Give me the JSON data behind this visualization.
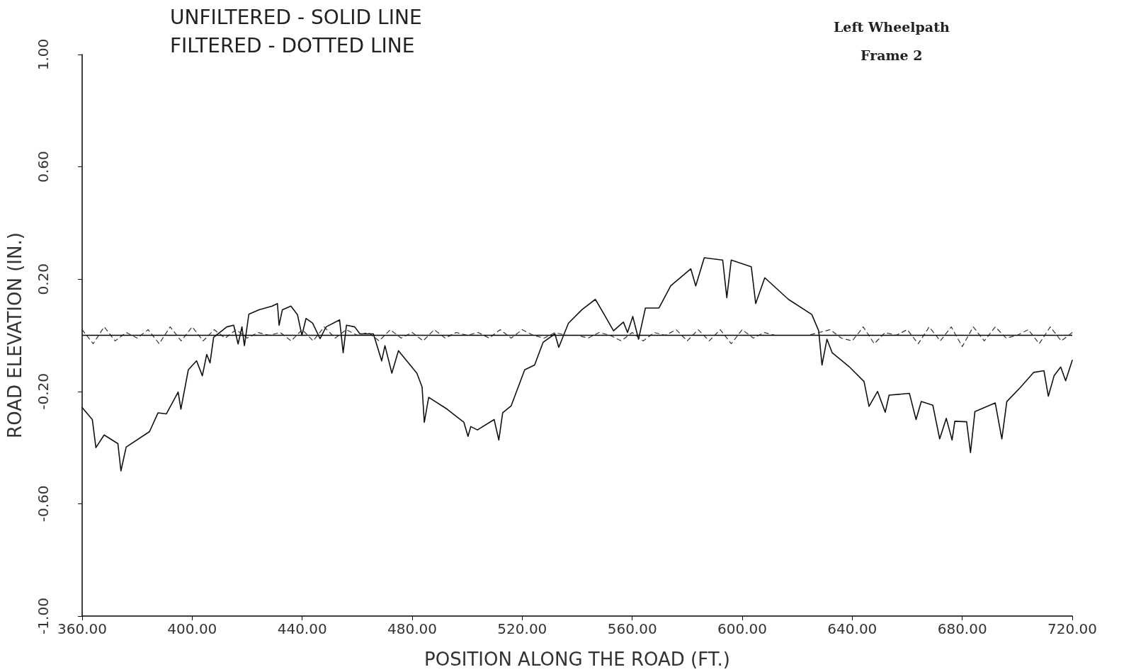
{
  "chart_data": {
    "type": "line",
    "xlabel": "POSITION ALONG THE ROAD (FT.)",
    "ylabel": "ROAD ELEVATION (IN.)",
    "annotations": [
      "UNFILTERED - SOLID LINE",
      "FILTERED - DOTTED LINE",
      "Left Wheelpath",
      "Frame 2"
    ],
    "xlim": [
      360,
      720
    ],
    "ylim": [
      -1,
      1
    ],
    "xticks": [
      {
        "value": 360,
        "label": "360.00"
      },
      {
        "value": 400,
        "label": "400.00"
      },
      {
        "value": 440,
        "label": "440.00"
      },
      {
        "value": 480,
        "label": "480.00"
      },
      {
        "value": 520,
        "label": "520.00"
      },
      {
        "value": 560,
        "label": "560.00"
      },
      {
        "value": 600,
        "label": "600.00"
      },
      {
        "value": 640,
        "label": "640.00"
      },
      {
        "value": 680,
        "label": "680.00"
      },
      {
        "value": 720,
        "label": "720.00"
      }
    ],
    "yticks": [
      {
        "value": -1,
        "label": "-1.00"
      },
      {
        "value": -0.6,
        "label": "-0.60"
      },
      {
        "value": -0.2,
        "label": "-0.20"
      },
      {
        "value": 0.2,
        "label": "0.20"
      },
      {
        "value": 0.6,
        "label": "0.60"
      },
      {
        "value": 1,
        "label": "1.00"
      }
    ],
    "grid": false,
    "marker": "none",
    "ref_lines": [
      {
        "axis": "y",
        "value": 0,
        "color": "#000000",
        "line_style": "solid"
      }
    ],
    "series": [
      {
        "color": "#111111",
        "line_style": "solid",
        "x": [
          360,
          363.7,
          365,
          368,
          373,
          374.1,
          376,
          384.5,
          387.6,
          390.6,
          394.9,
          395.9,
          398.6,
          401.6,
          403.7,
          405.3,
          406.5,
          407.8,
          412.6,
          415.1,
          416.7,
          418.1,
          419,
          420.6,
          424.3,
          429.1,
          431,
          431.6,
          432.8,
          435.9,
          438.3,
          439.9,
          441.4,
          443.8,
          446.5,
          448.7,
          453.6,
          454.9,
          456.1,
          459.1,
          461,
          465.9,
          468.9,
          470.1,
          472.6,
          475,
          481.7,
          483.6,
          484.4,
          486,
          492.7,
          498.8,
          500.3,
          501.3,
          503.7,
          509.8,
          511.5,
          512.9,
          516,
          520.9,
          524.5,
          527.6,
          531.9,
          533.3,
          536.8,
          541.7,
          546.6,
          549.6,
          553.2,
          556.8,
          558.3,
          560.2,
          562.3,
          564.8,
          569.7,
          574,
          581.3,
          583.1,
          586.2,
          592.9,
          594.4,
          596,
          603.3,
          604.9,
          608.2,
          616.8,
          625.3,
          627.8,
          629,
          630.8,
          632.7,
          638.8,
          644.3,
          646.1,
          649.2,
          652,
          653.4,
          660.8,
          663.2,
          665.1,
          669.3,
          671.8,
          674.2,
          676.3,
          677.3,
          681.6,
          683,
          684.6,
          692,
          694.4,
          696.2,
          701.1,
          706,
          709.7,
          711.3,
          713.4,
          715.8,
          717.6,
          720
        ],
        "values": [
          -0.257,
          -0.3,
          -0.4,
          -0.355,
          -0.386,
          -0.483,
          -0.398,
          -0.343,
          -0.276,
          -0.28,
          -0.202,
          -0.263,
          -0.123,
          -0.091,
          -0.144,
          -0.068,
          -0.098,
          -0.007,
          0.03,
          0.036,
          -0.031,
          0.03,
          -0.037,
          0.075,
          0.091,
          0.104,
          0.113,
          0.036,
          0.091,
          0.104,
          0.073,
          0,
          0.06,
          0.043,
          -0.012,
          0.03,
          0.055,
          -0.062,
          0.036,
          0.03,
          0.005,
          0.005,
          -0.091,
          -0.037,
          -0.135,
          -0.055,
          -0.135,
          -0.184,
          -0.31,
          -0.221,
          -0.263,
          -0.31,
          -0.36,
          -0.325,
          -0.337,
          -0.3,
          -0.373,
          -0.276,
          -0.251,
          -0.123,
          -0.106,
          -0.025,
          0.005,
          -0.043,
          0.043,
          0.091,
          0.128,
          0.078,
          0.016,
          0.047,
          0.01,
          0.067,
          -0.014,
          0.097,
          0.097,
          0.176,
          0.237,
          0.176,
          0.276,
          0.268,
          0.134,
          0.268,
          0.244,
          0.113,
          0.205,
          0.128,
          0.074,
          0.016,
          -0.106,
          -0.014,
          -0.062,
          -0.111,
          -0.165,
          -0.253,
          -0.2,
          -0.274,
          -0.213,
          -0.207,
          -0.3,
          -0.236,
          -0.249,
          -0.369,
          -0.296,
          -0.373,
          -0.306,
          -0.308,
          -0.418,
          -0.272,
          -0.241,
          -0.369,
          -0.236,
          -0.186,
          -0.132,
          -0.126,
          -0.217,
          -0.144,
          -0.113,
          -0.162,
          -0.089
        ]
      },
      {
        "color": "#333333",
        "line_style": "dashed",
        "x": [
          360,
          364,
          368,
          372,
          376,
          380,
          384,
          388,
          392,
          396,
          400,
          404,
          408,
          412,
          416,
          420,
          424,
          428,
          432,
          436,
          440,
          444,
          448,
          452,
          456,
          460,
          464,
          468,
          472,
          476,
          480,
          484,
          488,
          492,
          496,
          500,
          504,
          508,
          512,
          516,
          520,
          524,
          528,
          532,
          536,
          540,
          544,
          548,
          552,
          556,
          560,
          564,
          568,
          572,
          576,
          580,
          584,
          588,
          592,
          596,
          600,
          604,
          608,
          612,
          616,
          620,
          624,
          628,
          632,
          636,
          640,
          644,
          648,
          652,
          656,
          660,
          664,
          668,
          672,
          676,
          680,
          684,
          688,
          692,
          696,
          700,
          704,
          708,
          712,
          716,
          720
        ],
        "values": [
          0.02,
          -0.03,
          0.03,
          -0.02,
          0.01,
          -0.01,
          0.02,
          -0.03,
          0.03,
          -0.02,
          0.03,
          -0.02,
          0.02,
          -0.01,
          0.02,
          -0.01,
          0.01,
          0,
          0.01,
          -0.02,
          0.02,
          -0.02,
          0.03,
          -0.01,
          0.02,
          0,
          0.01,
          -0.02,
          0.02,
          -0.01,
          0.01,
          -0.02,
          0.02,
          -0.01,
          0.01,
          0,
          0.01,
          -0.01,
          0.02,
          -0.01,
          0.02,
          0,
          -0.01,
          0.01,
          0,
          0,
          -0.01,
          0.01,
          0,
          -0.02,
          0.01,
          -0.02,
          0.01,
          0,
          0.02,
          -0.02,
          0.02,
          -0.02,
          0.02,
          -0.03,
          0.02,
          -0.01,
          0.01,
          0,
          0,
          0,
          0,
          0.01,
          0.02,
          -0.01,
          -0.02,
          0.03,
          -0.03,
          0.01,
          0,
          0.02,
          -0.03,
          0.03,
          -0.02,
          0.03,
          -0.04,
          0.03,
          -0.02,
          0.03,
          -0.01,
          0,
          0.02,
          -0.03,
          0.03,
          -0.02,
          0.01
        ]
      }
    ]
  }
}
